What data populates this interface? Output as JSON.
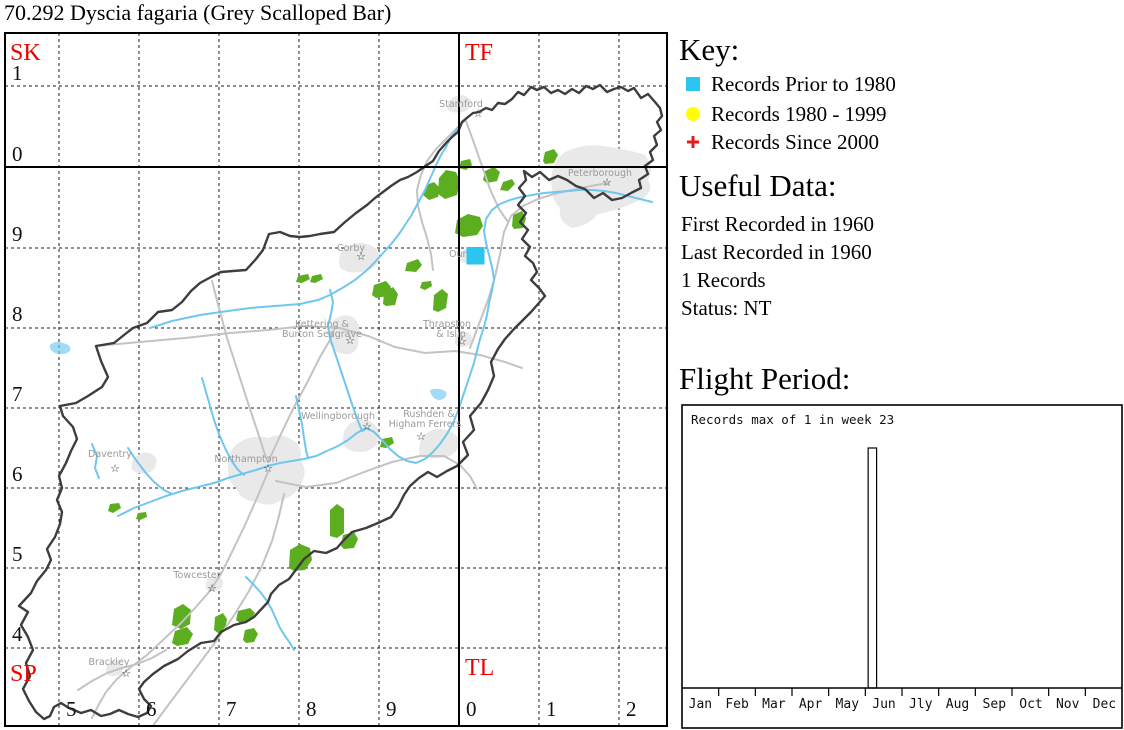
{
  "title": "70.292 Dyscia fagaria (Grey Scalloped Bar)",
  "colors": {
    "grid-letter": "#ee0000",
    "woodland": "#5cae20",
    "river": "#6fc7ef",
    "road": "#c3c3c3",
    "urban": "#e9e9e9",
    "boundary": "#3d3d3d"
  },
  "map": {
    "grid_letters": {
      "nw": "SK",
      "ne": "TF",
      "sw": "SP",
      "se": "TL"
    },
    "row_labels": [
      "1",
      "0",
      "9",
      "8",
      "7",
      "6",
      "5",
      "4"
    ],
    "col_labels": [
      "5",
      "6",
      "7",
      "8",
      "9",
      "0",
      "1",
      "2"
    ],
    "towns": [
      {
        "name": "Stamford"
      },
      {
        "name": "Peterborough"
      },
      {
        "name": "Oundle"
      },
      {
        "name": "Corby"
      },
      {
        "line1": "Kettering &",
        "line2": "Burton Seagrave"
      },
      {
        "line1": "Thrapston",
        "line2": "& Islip"
      },
      {
        "name": "Wellingborough"
      },
      {
        "line1": "Rushden &",
        "line2": "Higham Ferrers"
      },
      {
        "name": "Northampton"
      },
      {
        "name": "Daventry"
      },
      {
        "name": "Towcester"
      },
      {
        "name": "Brackley"
      }
    ],
    "record_marker": {
      "symbol": "square",
      "color": "#2bc5f0",
      "meaning": "Records Prior to 1980"
    }
  },
  "key": {
    "heading": "Key:",
    "items": [
      {
        "symbol": "square",
        "color": "#2bc5f0",
        "label": "Records Prior to 1980"
      },
      {
        "symbol": "circle",
        "color": "#ffff00",
        "label": "Records 1980 - 1999"
      },
      {
        "symbol": "plus",
        "color": "#e31b1b",
        "label": "Records Since 2000"
      }
    ]
  },
  "useful_data": {
    "heading": "Useful Data:",
    "lines": [
      "First Recorded in 1960",
      "Last Recorded in 1960",
      "1 Records",
      "Status: NT"
    ]
  },
  "flight_period": {
    "heading": "Flight Period:"
  },
  "chart_data": {
    "type": "bar",
    "title": "Records max of 1 in week 23",
    "x_unit": "week of year (1-52)",
    "month_labels": [
      "Jan",
      "Feb",
      "Mar",
      "Apr",
      "May",
      "Jun",
      "Jly",
      "Aug",
      "Sep",
      "Oct",
      "Nov",
      "Dec"
    ],
    "ylim": [
      0,
      1
    ],
    "weeks": 52,
    "bars": [
      {
        "week": 23,
        "value": 1
      }
    ],
    "max_records": 1,
    "peak_week": 23,
    "grid": false,
    "legend": false
  }
}
